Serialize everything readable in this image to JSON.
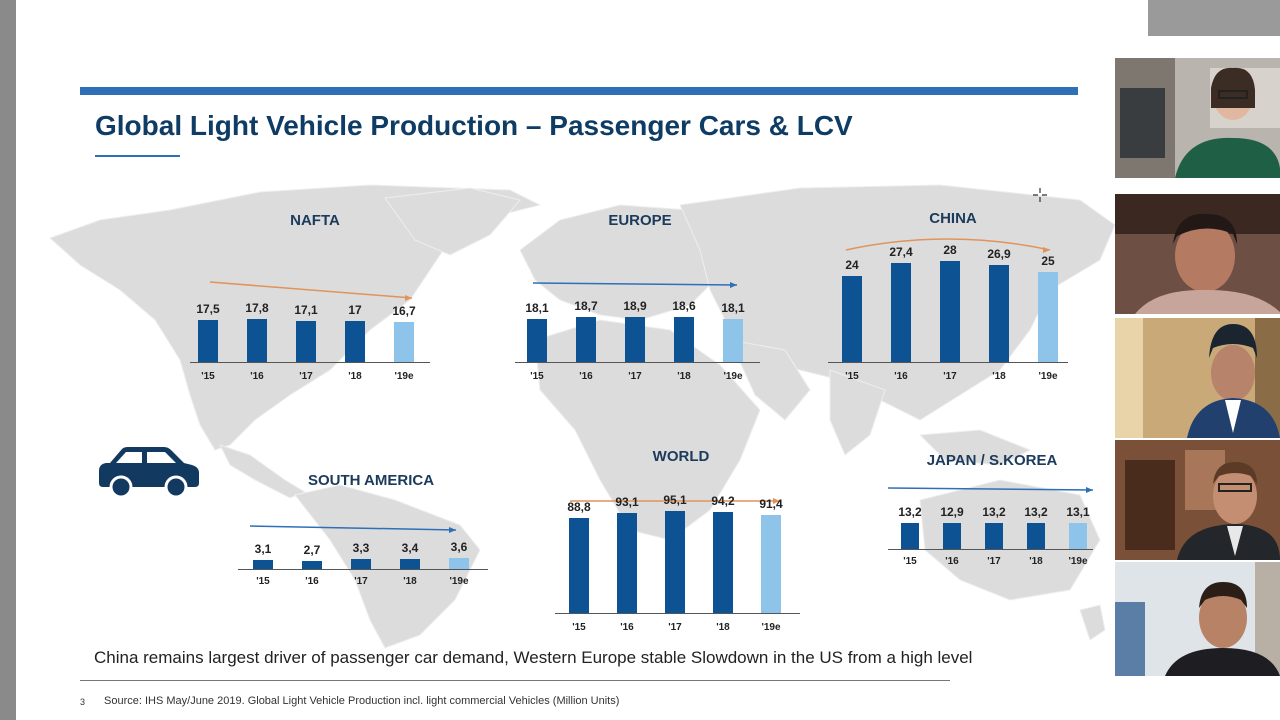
{
  "slide": {
    "title": "Global Light Vehicle Production – Passenger Cars & LCV",
    "footer_text": "China remains largest driver of passenger car demand, Western Europe stable Slowdown in the US from a high level",
    "page_number": "3",
    "source": "Source: IHS May/June 2019. Global Light Vehicle Production incl. light commercial Vehicles (Million Units)"
  },
  "icons": {
    "car": "car-icon",
    "cursor": "crosshair-cursor-icon"
  },
  "colors": {
    "bar": "#0d5394",
    "estimate_bar": "#8ec3ea",
    "title": "#0f3c64",
    "rule": "#2e6fb7"
  },
  "regions": [
    {
      "title": "NAFTA",
      "years": [
        "'15",
        "'16",
        "'17",
        "'18",
        "'19e"
      ],
      "labels": [
        "17,5",
        "17,8",
        "17,1",
        "17",
        "16,7"
      ],
      "values": [
        17.5,
        17.8,
        17.1,
        17.0,
        16.7
      ]
    },
    {
      "title": "EUROPE",
      "years": [
        "'15",
        "'16",
        "'17",
        "'18",
        "'19e"
      ],
      "labels": [
        "18,1",
        "18,7",
        "18,9",
        "18,6",
        "18,1"
      ],
      "values": [
        18.1,
        18.7,
        18.9,
        18.6,
        18.1
      ]
    },
    {
      "title": "CHINA",
      "years": [
        "'15",
        "'16",
        "'17",
        "'18",
        "'19e"
      ],
      "labels": [
        "24",
        "27,4",
        "28",
        "26,9",
        "25"
      ],
      "values": [
        24,
        27.4,
        28,
        26.9,
        25
      ]
    },
    {
      "title": "SOUTH AMERICA",
      "years": [
        "'15",
        "'16",
        "'17",
        "'18",
        "'19e"
      ],
      "labels": [
        "3,1",
        "2,7",
        "3,3",
        "3,4",
        "3,6"
      ],
      "values": [
        3.1,
        2.7,
        3.3,
        3.4,
        3.6
      ]
    },
    {
      "title": "WORLD",
      "years": [
        "'15",
        "'16",
        "'17",
        "'18",
        "'19e"
      ],
      "labels": [
        "88,8",
        "93,1",
        "95,1",
        "94,2",
        "91,4"
      ],
      "values": [
        88.8,
        93.1,
        95.1,
        94.2,
        91.4
      ]
    },
    {
      "title": "JAPAN / S.KOREA",
      "years": [
        "'15",
        "'16",
        "'17",
        "'18",
        "'19e"
      ],
      "labels": [
        "13,2",
        "12,9",
        "13,2",
        "13,2",
        "13,1"
      ],
      "values": [
        13.2,
        12.9,
        13.2,
        13.2,
        13.1
      ]
    }
  ],
  "participants": [
    {
      "icon": "participant-video-1"
    },
    {
      "icon": "participant-video-2"
    },
    {
      "icon": "participant-video-3"
    },
    {
      "icon": "participant-video-4"
    },
    {
      "icon": "participant-video-5"
    }
  ]
}
